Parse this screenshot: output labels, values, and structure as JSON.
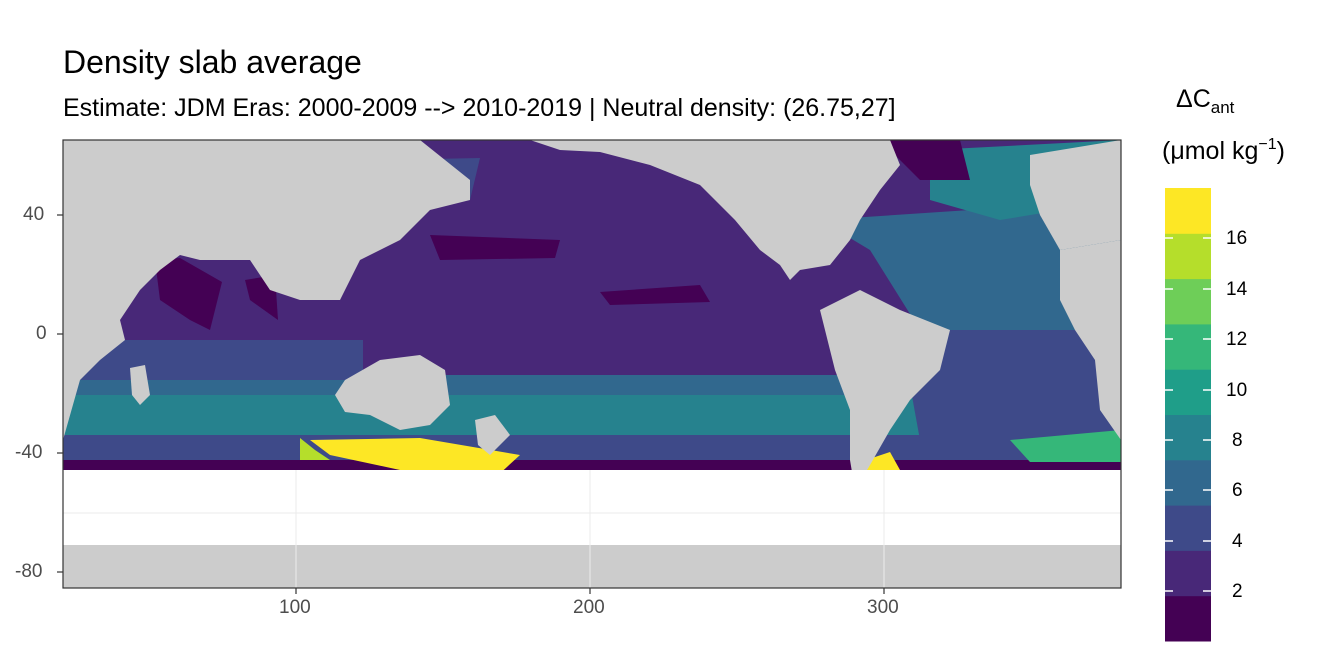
{
  "title": "Density slab average",
  "subtitle": "Estimate: JDM Eras: 2000-2009 --> 2010-2019 | Neutral density: (26.75,27]",
  "legend": {
    "title_main": "ΔC",
    "title_sub": "ant",
    "unit_open": "(μmol kg",
    "unit_sup": "−1",
    "unit_close": ")",
    "ticks": [
      "2",
      "4",
      "6",
      "8",
      "10",
      "12",
      "14",
      "16"
    ],
    "colors": [
      "#440154",
      "#482878",
      "#3e4a89",
      "#31688e",
      "#26828e",
      "#1f9e89",
      "#35b779",
      "#6ece58",
      "#b5de2b",
      "#fde725"
    ]
  },
  "chart_data": {
    "type": "heatmap",
    "title": "Density slab average",
    "subtitle": "Estimate: JDM Eras: 2000-2009 --> 2010-2019 | Neutral density: (26.75,27]",
    "x_ticks": [
      "100",
      "200",
      "300"
    ],
    "y_ticks": [
      "40",
      "0",
      "-40",
      "-80"
    ],
    "xlim": [
      20,
      380
    ],
    "ylim": [
      -85,
      65
    ],
    "color_scale": "viridis",
    "legend_position": "right",
    "grid": true,
    "bin_breaks": [
      2,
      4,
      6,
      8,
      10,
      12,
      14,
      16
    ]
  }
}
